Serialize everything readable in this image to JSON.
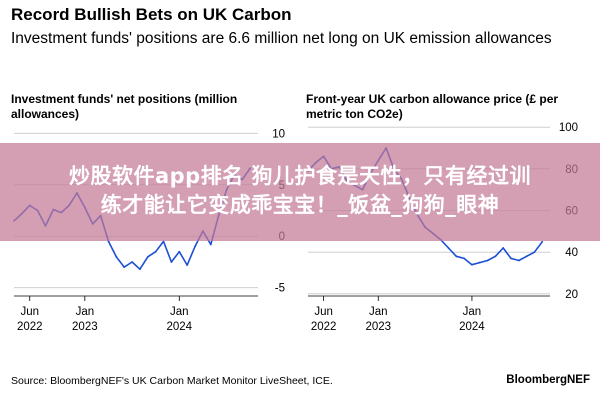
{
  "header": {
    "title": "Record Bullish Bets on UK Carbon",
    "subtitle": "Investment funds' positions are 6.6 million net long on UK emission allowances"
  },
  "chart_data": [
    {
      "type": "line",
      "title": "Investment funds' net positions (million allowances)",
      "x_ticks": [
        {
          "label": "Jun",
          "year": "2022",
          "date": "2022-06"
        },
        {
          "label": "Jan",
          "year": "2023",
          "date": "2023-01"
        },
        {
          "label": "Jan",
          "year": "2024",
          "date": "2024-01"
        }
      ],
      "xlim": [
        "2022-04",
        "2024-11"
      ],
      "y_ticks": [
        10,
        5,
        0,
        -5
      ],
      "ylim": [
        -6,
        11
      ],
      "color": "#1a4fd6",
      "series": [
        {
          "x": [
            "2022-04",
            "2022-05",
            "2022-06",
            "2022-07",
            "2022-08",
            "2022-09",
            "2022-10",
            "2022-11",
            "2022-12",
            "2023-01",
            "2023-02",
            "2023-03",
            "2023-04",
            "2023-05",
            "2023-06",
            "2023-07",
            "2023-08",
            "2023-09",
            "2023-10",
            "2023-11",
            "2023-12",
            "2024-01",
            "2024-02",
            "2024-03",
            "2024-04",
            "2024-05",
            "2024-06",
            "2024-07",
            "2024-08",
            "2024-09",
            "2024-10"
          ],
          "values": [
            1.5,
            2.2,
            3.0,
            2.5,
            1.0,
            2.6,
            2.3,
            3.0,
            4.2,
            2.8,
            1.2,
            2.0,
            -0.5,
            -2.0,
            -3.0,
            -2.5,
            -3.2,
            -2.0,
            -1.5,
            -0.5,
            -2.5,
            -1.5,
            -2.8,
            -1.0,
            0.5,
            -0.8,
            2.0,
            4.5,
            6.0,
            5.5,
            6.6
          ]
        }
      ]
    },
    {
      "type": "line",
      "title": "Front-year UK carbon allowance price (£ per metric ton CO2e)",
      "x_ticks": [
        {
          "label": "Jun",
          "year": "2022",
          "date": "2022-06"
        },
        {
          "label": "Jan",
          "year": "2023",
          "date": "2023-01"
        },
        {
          "label": "Jan",
          "year": "2024",
          "date": "2024-01"
        }
      ],
      "xlim": [
        "2022-04",
        "2024-11"
      ],
      "y_ticks": [
        100,
        80,
        60,
        40,
        20
      ],
      "ylim": [
        18,
        102
      ],
      "color": "#1a4fd6",
      "series": [
        {
          "x": [
            "2022-04",
            "2022-05",
            "2022-06",
            "2022-07",
            "2022-08",
            "2022-09",
            "2022-10",
            "2022-11",
            "2022-12",
            "2023-01",
            "2023-02",
            "2023-03",
            "2023-04",
            "2023-05",
            "2023-06",
            "2023-07",
            "2023-08",
            "2023-09",
            "2023-10",
            "2023-11",
            "2023-12",
            "2024-01",
            "2024-02",
            "2024-03",
            "2024-04",
            "2024-05",
            "2024-06",
            "2024-07",
            "2024-08",
            "2024-09",
            "2024-10"
          ],
          "values": [
            79,
            83,
            86,
            80,
            81,
            74,
            72,
            70,
            78,
            84,
            90,
            80,
            75,
            66,
            58,
            52,
            49,
            46,
            42,
            38,
            37,
            34,
            35,
            36,
            38,
            42,
            37,
            36,
            38,
            40,
            45
          ]
        }
      ]
    }
  ],
  "footer": {
    "source": "Source: BloombergNEF's UK Carbon Market Monitor LiveSheet, ICE.",
    "brand": "BloombergNEF"
  },
  "overlay": {
    "line1": "炒股软件app排名 狗儿护食是天性，只有经过训",
    "line2": "练才能让它变成乖宝宝！_饭盆_狗狗_眼神"
  }
}
